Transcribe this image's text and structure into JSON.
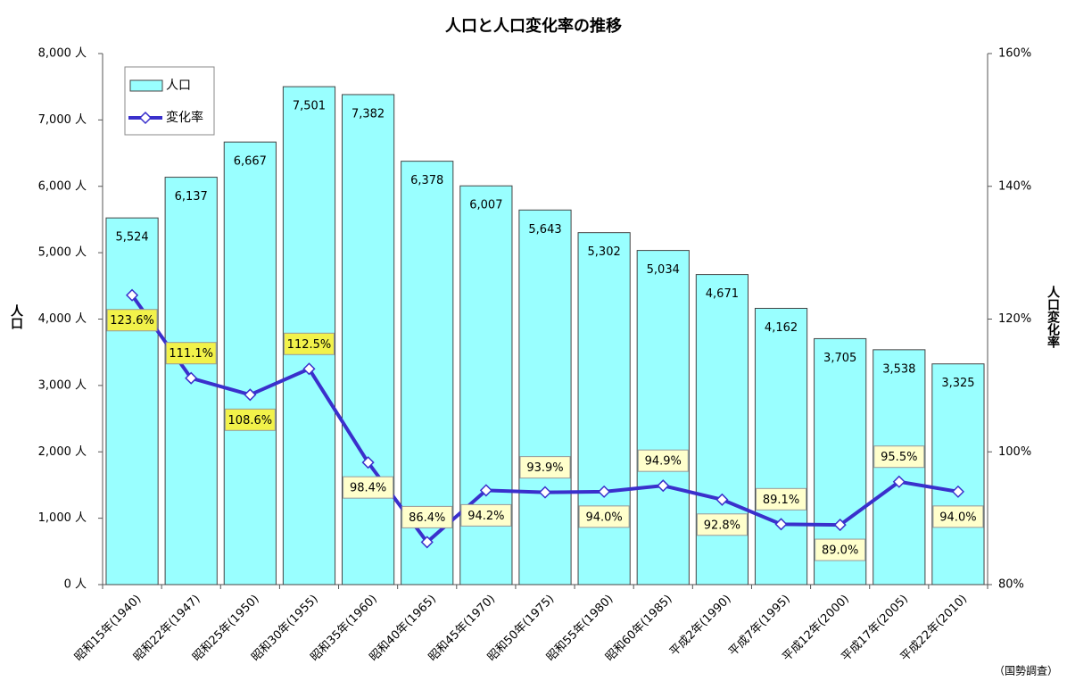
{
  "chart_data": {
    "type": "bar_line",
    "title": "人口と人口変化率の推移",
    "y_label": "人口",
    "y2_label": "人口変化率",
    "annotation": "（国勢調査）",
    "categories": [
      "昭和15年(1940)",
      "昭和22年(1947)",
      "昭和25年(1950)",
      "昭和30年(1955)",
      "昭和35年(1960)",
      "昭和40年(1965)",
      "昭和45年(1970)",
      "昭和50年(1975)",
      "昭和55年(1980)",
      "昭和60年(1985)",
      "平成2年(1990)",
      "平成7年(1995)",
      "平成12年(2000)",
      "平成17年(2005)",
      "平成22年(2010)"
    ],
    "series": [
      {
        "name": "人口",
        "type": "bar",
        "color": "#99ffff",
        "values": [
          5524,
          6137,
          6667,
          7501,
          7382,
          6378,
          6007,
          5643,
          5302,
          5034,
          4671,
          4162,
          3705,
          3538,
          3325
        ],
        "value_labels": [
          "5,524",
          "6,137",
          "6,667",
          "7,501",
          "7,382",
          "6,378",
          "6,007",
          "5,643",
          "5,302",
          "5,034",
          "4,671",
          "4,162",
          "3,705",
          "3,538",
          "3,325"
        ]
      },
      {
        "name": "変化率",
        "type": "line",
        "axis": "y2",
        "color": "#3a30cc",
        "values": [
          123.6,
          111.1,
          108.6,
          112.5,
          98.4,
          86.4,
          94.2,
          93.9,
          94.0,
          94.9,
          92.8,
          89.1,
          89.0,
          95.5,
          94.0
        ],
        "value_labels": [
          "123.6%",
          "111.1%",
          "108.6%",
          "112.5%",
          "98.4%",
          "86.4%",
          "94.2%",
          "93.9%",
          "94.0%",
          "94.9%",
          "92.8%",
          "89.1%",
          "89.0%",
          "95.5%",
          "94.0%"
        ],
        "label_colors": [
          "#f2f24a",
          "#f2f24a",
          "#f2f24a",
          "#f2f24a",
          "#ffffcc",
          "#ffffcc",
          "#ffffcc",
          "#ffffcc",
          "#ffffcc",
          "#ffffcc",
          "#ffffcc",
          "#ffffcc",
          "#ffffcc",
          "#ffffcc",
          "#ffffcc"
        ]
      }
    ],
    "ylim": [
      0,
      8000
    ],
    "yticks": [
      {
        "value": 0,
        "label": "0 人"
      },
      {
        "value": 1000,
        "label": "1,000 人"
      },
      {
        "value": 2000,
        "label": "2,000 人"
      },
      {
        "value": 3000,
        "label": "3,000 人"
      },
      {
        "value": 4000,
        "label": "4,000 人"
      },
      {
        "value": 5000,
        "label": "5,000 人"
      },
      {
        "value": 6000,
        "label": "6,000 人"
      },
      {
        "value": 7000,
        "label": "7,000 人"
      },
      {
        "value": 8000,
        "label": "8,000 人"
      }
    ],
    "y2lim": [
      80,
      160
    ],
    "y2ticks": [
      {
        "value": 80,
        "label": "80%"
      },
      {
        "value": 100,
        "label": "100%"
      },
      {
        "value": 120,
        "label": "120%"
      },
      {
        "value": 140,
        "label": "140%"
      },
      {
        "value": 160,
        "label": "160%"
      }
    ],
    "grid": false,
    "legend": "upper left"
  }
}
